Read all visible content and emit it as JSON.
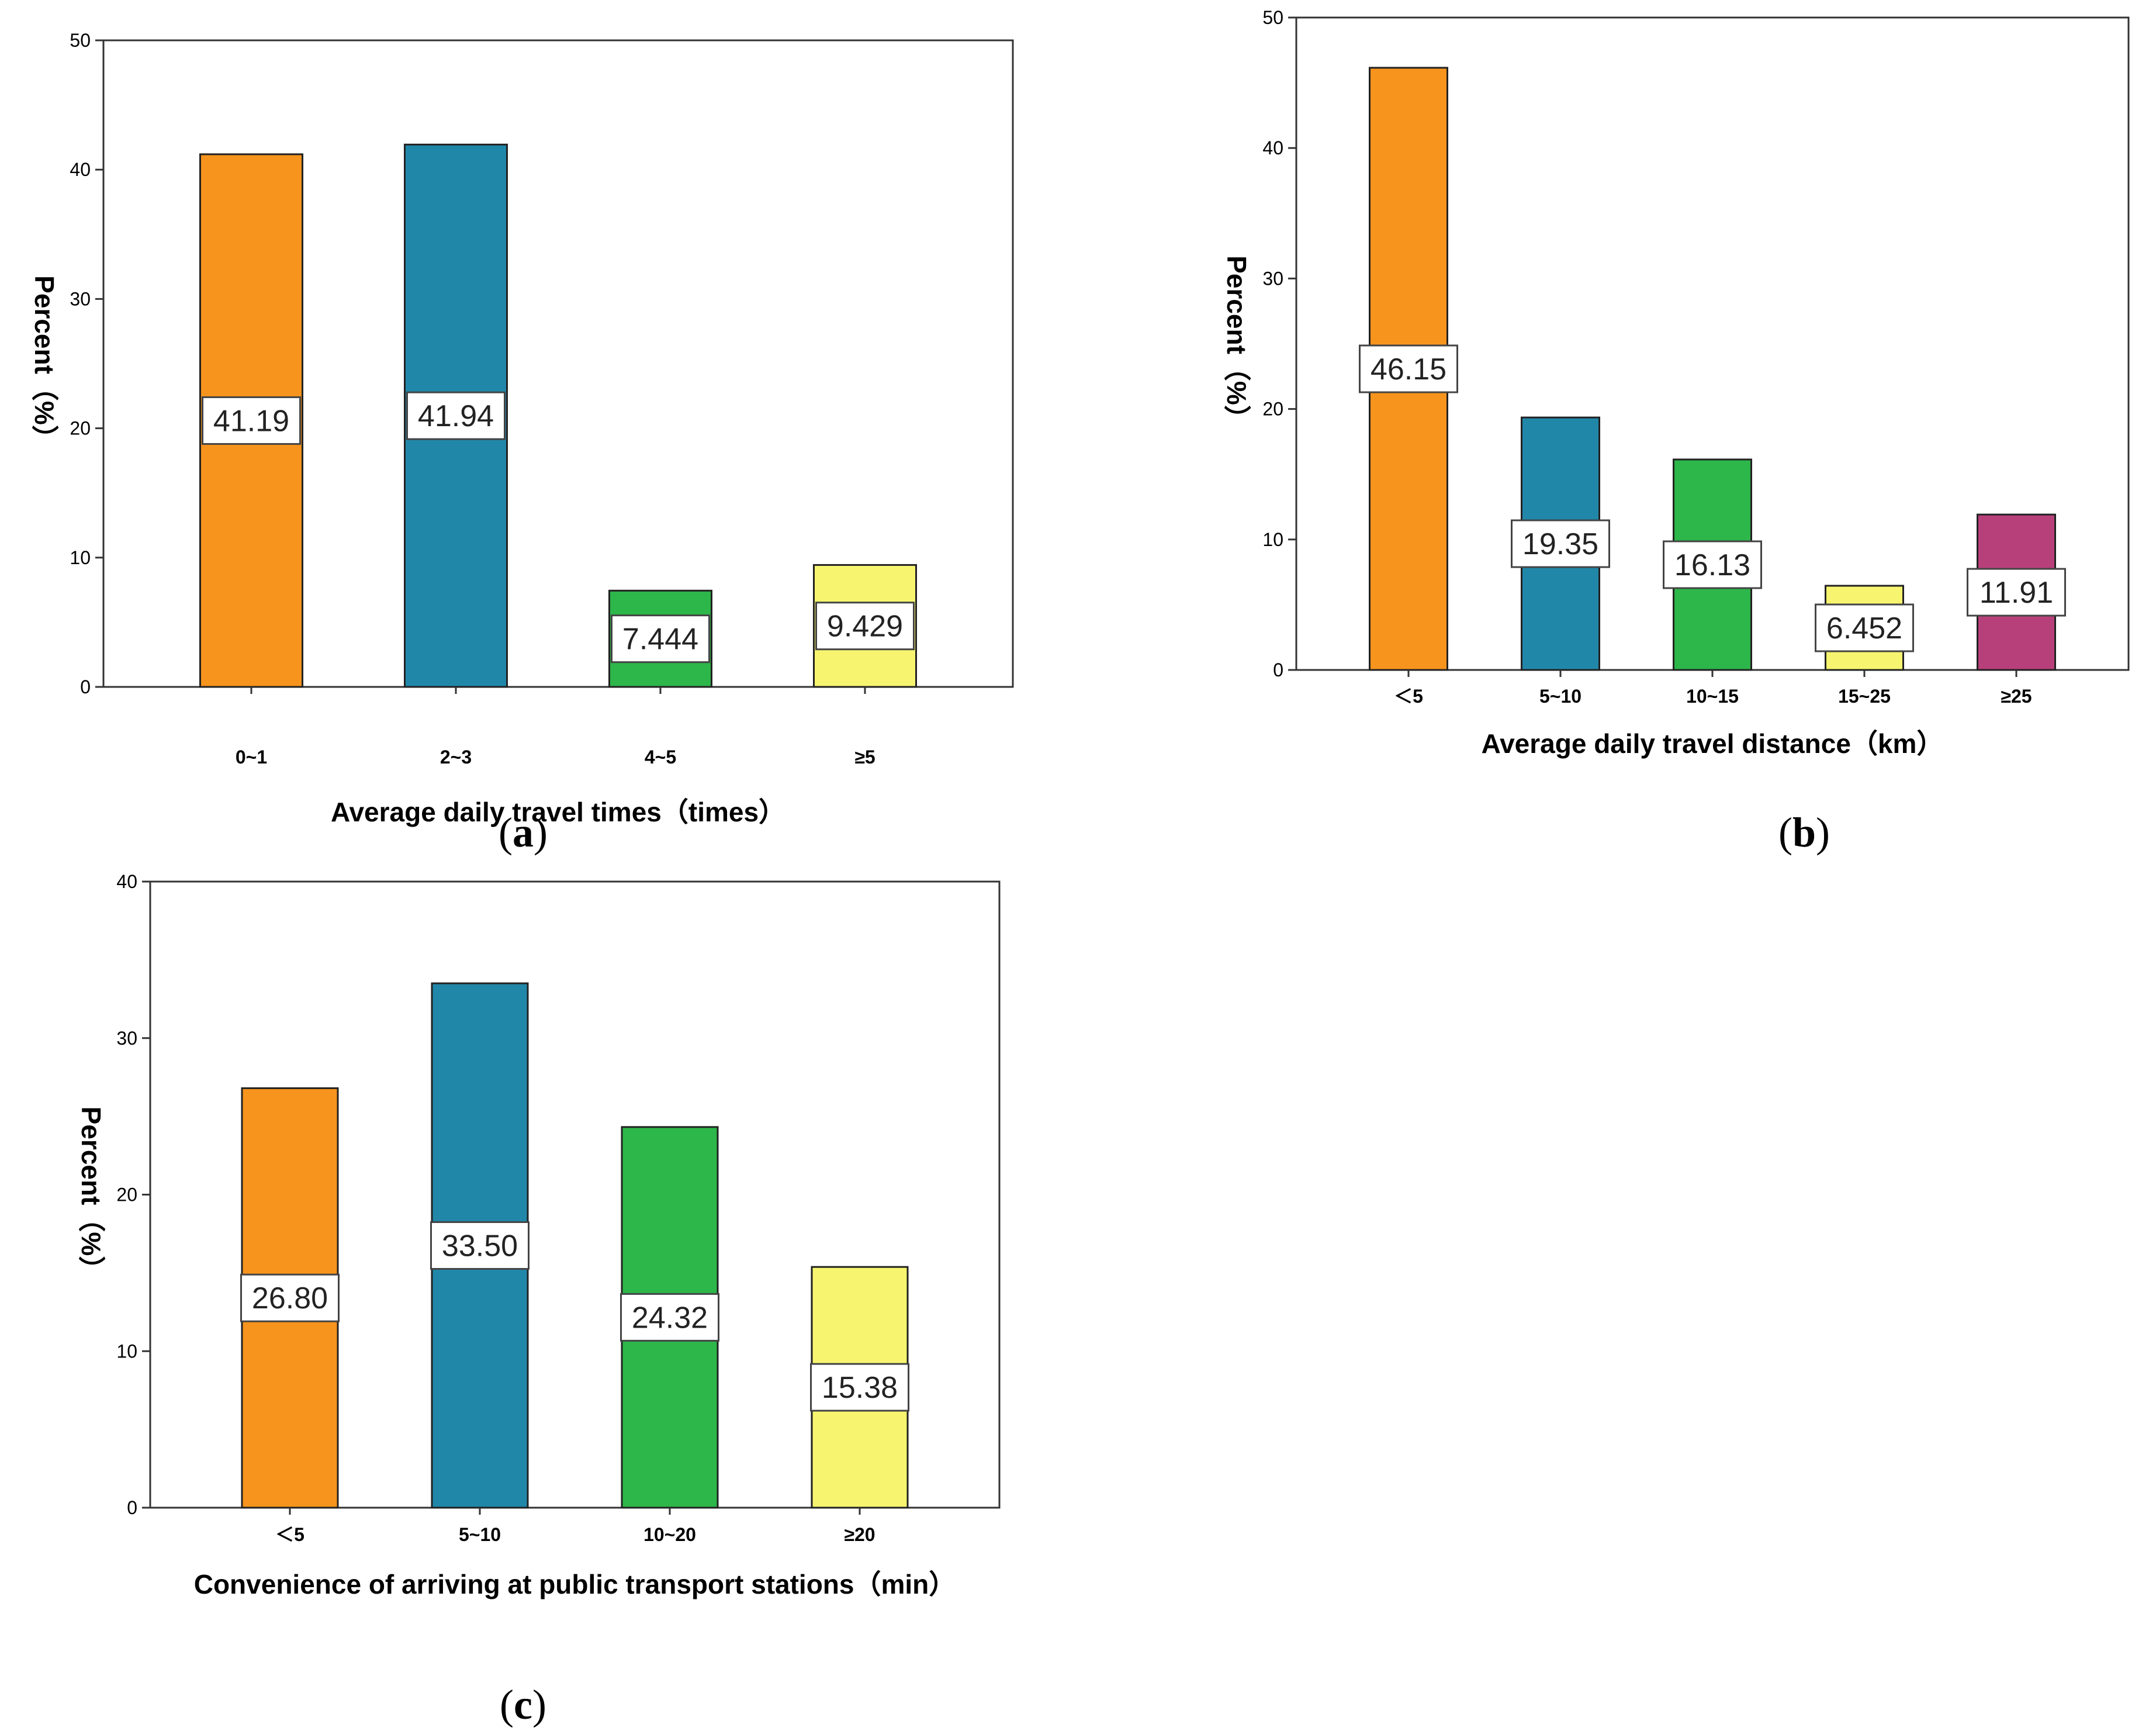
{
  "chart_data": [
    {
      "id": "a",
      "type": "bar",
      "caption": "a",
      "categories": [
        "0~1",
        "2~3",
        "4~5",
        "≥5"
      ],
      "values": [
        41.19,
        41.94,
        7.444,
        9.429
      ],
      "labels": [
        "41.19",
        "41.94",
        "7.444",
        "9.429"
      ],
      "colors": [
        "#f7941d",
        "#2187a9",
        "#2db64a",
        "#f7f570"
      ],
      "xlabel": "Average daily travel times（times）",
      "ylabel": "Percent（%）",
      "ylim": [
        0,
        50
      ],
      "yticks": [
        "0",
        "10",
        "20",
        "30",
        "40",
        "50"
      ]
    },
    {
      "id": "b",
      "type": "bar",
      "caption": "b",
      "categories": [
        "＜5",
        "5~10",
        "10~15",
        "15~25",
        "≥25"
      ],
      "values": [
        46.15,
        19.35,
        16.13,
        6.452,
        11.91
      ],
      "labels": [
        "46.15",
        "19.35",
        "16.13",
        "6.452",
        "11.91"
      ],
      "colors": [
        "#f7941d",
        "#2187a9",
        "#2db64a",
        "#f7f570",
        "#b8407a"
      ],
      "xlabel": "Average daily travel distance（km）",
      "ylabel": "Percent（%）",
      "ylim": [
        0,
        50
      ],
      "yticks": [
        "0",
        "10",
        "20",
        "30",
        "40",
        "50"
      ]
    },
    {
      "id": "c",
      "type": "bar",
      "caption": "c",
      "categories": [
        "＜5",
        "5~10",
        "10~20",
        "≥20"
      ],
      "values": [
        26.8,
        33.5,
        24.32,
        15.38
      ],
      "labels": [
        "26.80",
        "33.50",
        "24.32",
        "15.38"
      ],
      "colors": [
        "#f7941d",
        "#2187a9",
        "#2db64a",
        "#f7f570"
      ],
      "xlabel": "Convenience of arriving at public transport stations（min）",
      "ylabel": "Percent（%）",
      "ylim": [
        0,
        40
      ],
      "yticks": [
        "0",
        "10",
        "20",
        "30",
        "40"
      ]
    }
  ]
}
